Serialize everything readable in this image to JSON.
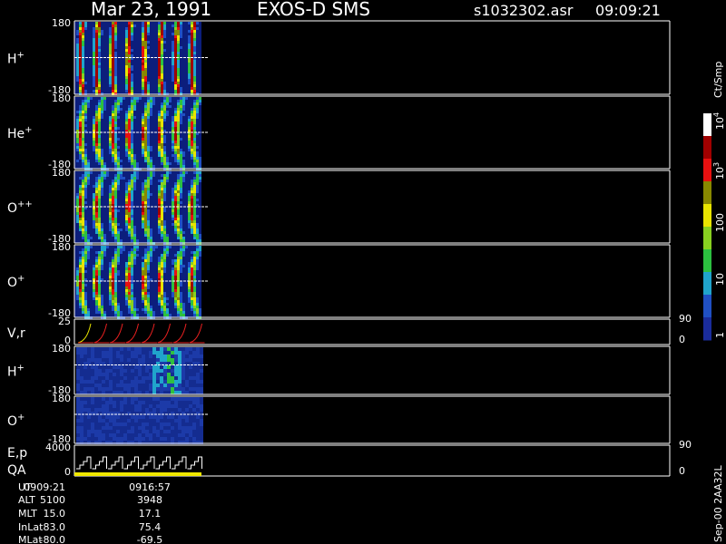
{
  "header": {
    "date": "Mar 23, 1991",
    "instrument": "EXOS-D SMS",
    "file": "s1032302.asr",
    "time": "09:09:21"
  },
  "panels": [
    {
      "label": "H",
      "charge": "+",
      "top": "180",
      "bottom": "-180"
    },
    {
      "label": "He",
      "charge": "+",
      "top": "180",
      "bottom": "-180"
    },
    {
      "label": "O",
      "charge": "++",
      "top": "180",
      "bottom": "-180"
    },
    {
      "label": "O",
      "charge": "+",
      "top": "180",
      "bottom": "-180"
    },
    {
      "label": "V,r",
      "top": "25",
      "bottom": "0",
      "right_top": "90",
      "right_bottom": "0"
    },
    {
      "label": "H",
      "charge": "+",
      "top": "180",
      "bottom": "-180"
    },
    {
      "label": "O",
      "charge": "+",
      "top": "180",
      "bottom": "-180"
    },
    {
      "label": "E,p",
      "label2": "QA",
      "top": "4000",
      "bottom": "0",
      "right_top": "90",
      "right_bottom": "0"
    }
  ],
  "colorbar": {
    "unit": "Ct/Smp",
    "ticks": [
      {
        "base": "10",
        "exp": "4"
      },
      {
        "base": "10",
        "exp": "3"
      },
      {
        "text": "100"
      },
      {
        "text": "10"
      },
      {
        "text": "1"
      }
    ]
  },
  "table": {
    "rows": [
      [
        "UT",
        "0909:21",
        "0916:57"
      ],
      [
        "ALT",
        "5100",
        "3948"
      ],
      [
        "MLT",
        "15.0",
        "17.1"
      ],
      [
        "InLat",
        "83.0",
        "75.4"
      ],
      [
        "MLat",
        "-80.0",
        "-69.5"
      ]
    ]
  },
  "footer": "Sep-00 2AA32L"
}
